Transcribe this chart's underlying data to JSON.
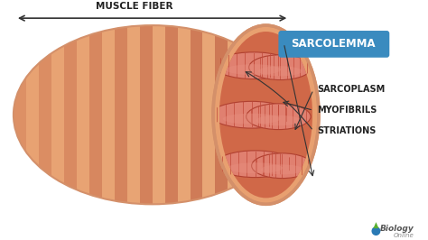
{
  "bg_color": "#ffffff",
  "sarcolemma_label": "SARCOLEMMA",
  "sarcolemma_box_color": "#3a8bbf",
  "sarcoplasm_label": "SARCOPLASM",
  "myofibrils_label": "MYOFIBRILS",
  "striations_label": "STRIATIONS",
  "muscle_fiber_label": "MUSCLE FIBER",
  "label_text_color": "#222222",
  "label_fontsize": 7.0,
  "sarcolemma_fontsize": 8.5,
  "muscle_fiber_fontsize": 7.5,
  "fiber_outer_light": "#e8a070",
  "fiber_stripe_light": "#e8a878",
  "fiber_stripe_dark": "#c87050",
  "fiber_border": "#d4906a",
  "sarcolemma_ring_color": "#d4906a",
  "sarcoplasm_fill": "#d06848",
  "myofibril_pink": "#e08070",
  "myofibril_dark": "#c05040",
  "myofibril_border": "#b04030",
  "striation_color": "#c04838",
  "arrow_color": "#333333",
  "watermark_color": "#aaaaaa"
}
